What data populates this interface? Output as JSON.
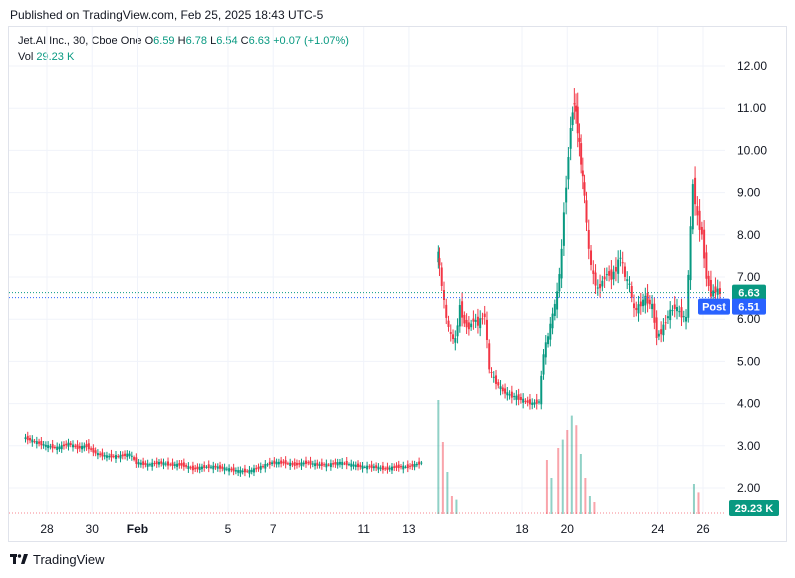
{
  "header": {
    "published": "Published on TradingView.com, Feb 25, 2025 18:43 UTC-5"
  },
  "legend": {
    "symbol": "Jet.AI Inc., 30, Cboe One",
    "open_label": "O",
    "open": "6.59",
    "high_label": "H",
    "high": "6.78",
    "low_label": "L",
    "low": "6.54",
    "close_label": "C",
    "close": "6.63",
    "change": "+0.07 (+1.07%)",
    "vol_label": "Vol",
    "vol": "29.23 K"
  },
  "price_badges": {
    "last": "6.63",
    "post_label": "Post",
    "post": "6.51",
    "volume": "29.23 K"
  },
  "footer": {
    "brand": "TradingView"
  },
  "colors": {
    "up": "#089981",
    "down": "#f23645",
    "post_blue": "#2962ff",
    "grid": "#f0f3fa"
  },
  "chart_data": {
    "type": "candlestick",
    "y_ticks": [
      "12.00",
      "11.00",
      "10.00",
      "9.00",
      "8.00",
      "7.00",
      "6.00",
      "5.00",
      "4.00",
      "3.00",
      "2.00"
    ],
    "y_range": [
      1.3,
      12.4
    ],
    "x_ticks": [
      {
        "label": "28",
        "day": 28
      },
      {
        "label": "30",
        "day": 30
      },
      {
        "label": "Feb",
        "day": 32
      },
      {
        "label": "5",
        "day": 36
      },
      {
        "label": "7",
        "day": 38
      },
      {
        "label": "11",
        "day": 42
      },
      {
        "label": "13",
        "day": 44
      },
      {
        "label": "18",
        "day": 49
      },
      {
        "label": "20",
        "day": 51
      },
      {
        "label": "24",
        "day": 55
      },
      {
        "label": "26",
        "day": 57
      }
    ],
    "last_price": 6.63,
    "post_price": 6.51,
    "price_path": [
      [
        27.0,
        3.2
      ],
      [
        27.5,
        3.1
      ],
      [
        28.0,
        3.0
      ],
      [
        28.5,
        2.95
      ],
      [
        29.0,
        3.05
      ],
      [
        29.4,
        2.95
      ],
      [
        29.8,
        3.0
      ],
      [
        30.0,
        2.9
      ],
      [
        30.3,
        2.8
      ],
      [
        30.7,
        2.75
      ],
      [
        31.2,
        2.75
      ],
      [
        31.7,
        2.8
      ],
      [
        32.0,
        2.6
      ],
      [
        32.5,
        2.55
      ],
      [
        33.0,
        2.6
      ],
      [
        33.5,
        2.55
      ],
      [
        34.0,
        2.55
      ],
      [
        34.5,
        2.45
      ],
      [
        35.0,
        2.5
      ],
      [
        35.5,
        2.5
      ],
      [
        36.0,
        2.45
      ],
      [
        36.5,
        2.4
      ],
      [
        37.0,
        2.4
      ],
      [
        37.5,
        2.5
      ],
      [
        38.0,
        2.6
      ],
      [
        38.5,
        2.6
      ],
      [
        39.0,
        2.55
      ],
      [
        39.5,
        2.6
      ],
      [
        40.0,
        2.55
      ],
      [
        40.5,
        2.55
      ],
      [
        41.0,
        2.6
      ],
      [
        41.5,
        2.55
      ],
      [
        42.0,
        2.5
      ],
      [
        42.5,
        2.5
      ],
      [
        43.0,
        2.45
      ],
      [
        43.5,
        2.5
      ],
      [
        44.0,
        2.5
      ],
      [
        44.3,
        2.55
      ],
      [
        44.6,
        2.6
      ],
      [
        45.3,
        7.6
      ],
      [
        45.5,
        6.8
      ],
      [
        45.7,
        6.0
      ],
      [
        45.9,
        5.6
      ],
      [
        46.1,
        5.5
      ],
      [
        46.3,
        6.3
      ],
      [
        46.5,
        5.9
      ],
      [
        46.7,
        5.8
      ],
      [
        46.9,
        6.0
      ],
      [
        47.1,
        5.9
      ],
      [
        47.4,
        6.1
      ],
      [
        47.6,
        4.8
      ],
      [
        47.9,
        4.5
      ],
      [
        48.2,
        4.3
      ],
      [
        48.5,
        4.2
      ],
      [
        48.8,
        4.15
      ],
      [
        49.2,
        4.05
      ],
      [
        49.5,
        4.0
      ],
      [
        49.8,
        4.05
      ],
      [
        50.0,
        5.2
      ],
      [
        50.2,
        5.6
      ],
      [
        50.4,
        6.1
      ],
      [
        50.6,
        6.6
      ],
      [
        50.8,
        7.6
      ],
      [
        50.9,
        8.6
      ],
      [
        51.0,
        9.2
      ],
      [
        51.2,
        10.6
      ],
      [
        51.35,
        11.2
      ],
      [
        51.5,
        10.5
      ],
      [
        51.65,
        9.7
      ],
      [
        51.8,
        8.9
      ],
      [
        52.0,
        7.6
      ],
      [
        52.2,
        7.0
      ],
      [
        52.4,
        6.7
      ],
      [
        52.6,
        6.9
      ],
      [
        52.8,
        7.1
      ],
      [
        53.0,
        7.0
      ],
      [
        53.2,
        7.2
      ],
      [
        53.4,
        7.5
      ],
      [
        53.6,
        7.0
      ],
      [
        53.8,
        6.8
      ],
      [
        54.0,
        6.2
      ],
      [
        54.2,
        6.3
      ],
      [
        54.5,
        6.5
      ],
      [
        54.8,
        6.3
      ],
      [
        55.0,
        5.6
      ],
      [
        55.2,
        5.7
      ],
      [
        55.5,
        6.1
      ],
      [
        55.8,
        6.3
      ],
      [
        56.1,
        6.1
      ],
      [
        56.3,
        6.0
      ],
      [
        56.6,
        9.2
      ],
      [
        56.8,
        8.4
      ],
      [
        57.0,
        8.0
      ],
      [
        57.2,
        7.0
      ],
      [
        57.4,
        6.6
      ],
      [
        57.6,
        6.7
      ],
      [
        57.8,
        6.63
      ]
    ],
    "volume_series": [
      {
        "day": 45.3,
        "h": 0.95
      },
      {
        "day": 45.5,
        "h": 0.6
      },
      {
        "day": 45.7,
        "h": 0.35
      },
      {
        "day": 45.9,
        "h": 0.15
      },
      {
        "day": 46.1,
        "h": 0.12
      },
      {
        "day": 50.1,
        "h": 0.45
      },
      {
        "day": 50.3,
        "h": 0.3
      },
      {
        "day": 50.6,
        "h": 0.55
      },
      {
        "day": 50.8,
        "h": 0.62
      },
      {
        "day": 51.0,
        "h": 0.7
      },
      {
        "day": 51.2,
        "h": 0.82
      },
      {
        "day": 51.4,
        "h": 0.74
      },
      {
        "day": 51.6,
        "h": 0.5
      },
      {
        "day": 51.8,
        "h": 0.3
      },
      {
        "day": 52.0,
        "h": 0.15
      },
      {
        "day": 52.2,
        "h": 0.1
      },
      {
        "day": 56.6,
        "h": 0.25
      },
      {
        "day": 56.8,
        "h": 0.18
      }
    ]
  }
}
